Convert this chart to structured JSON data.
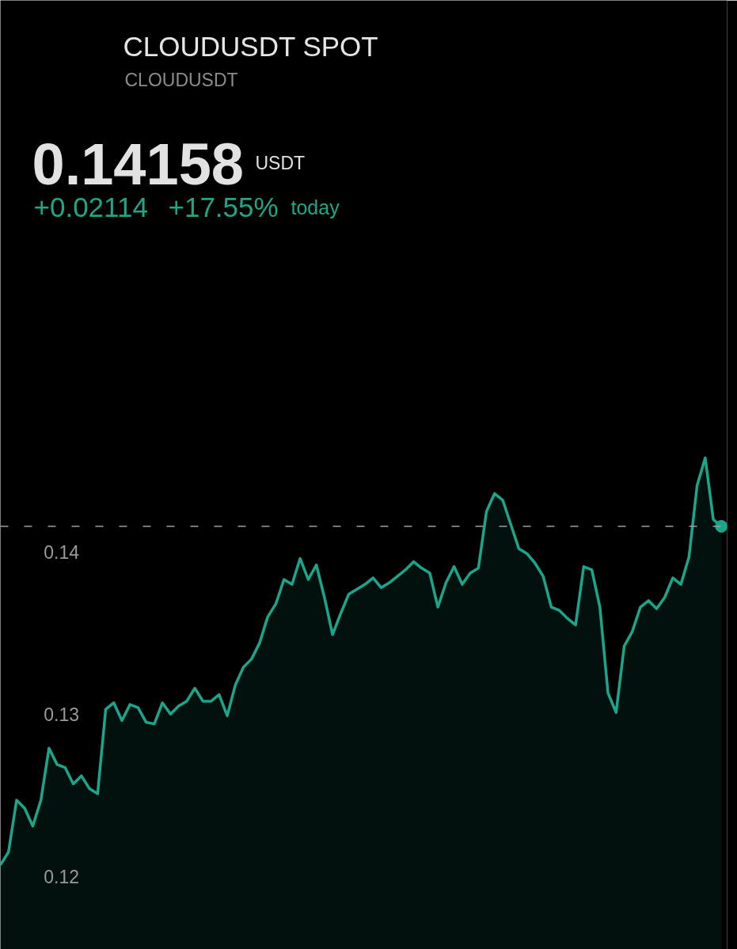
{
  "chart_data": {
    "type": "area",
    "title": "CLOUDUSDT SPOT",
    "subtitle": "CLOUDUSDT",
    "annotations": [
      "0.14158",
      "USDT",
      "+0.02114",
      "+17.55%",
      "today"
    ],
    "categories": [
      null,
      null,
      null,
      null,
      null,
      null,
      null,
      null,
      null,
      null,
      null,
      null,
      null,
      null,
      null,
      null,
      null,
      null,
      null,
      null,
      null,
      null,
      null,
      null,
      null,
      null,
      null,
      null,
      null,
      null,
      null,
      null,
      null,
      null,
      null,
      null,
      null,
      null,
      null,
      null,
      null,
      null,
      null,
      null,
      null,
      null,
      null,
      null,
      null,
      null,
      null,
      null,
      null,
      null,
      null,
      null,
      null,
      null,
      null,
      null,
      null,
      null,
      null,
      null,
      null,
      null,
      null,
      null,
      null,
      null,
      null,
      null,
      null,
      null,
      null,
      null,
      null,
      null,
      null,
      null,
      null,
      null,
      null,
      null,
      null,
      null,
      null,
      null,
      null,
      null
    ],
    "series": [
      {
        "color": "#1aa68a",
        "values": [
          0.1207,
          0.1215,
          0.1247,
          0.1242,
          0.1231,
          0.1247,
          0.1279,
          0.1269,
          0.1267,
          0.1257,
          0.1262,
          0.1254,
          0.1251,
          0.1303,
          0.1307,
          0.1296,
          0.1306,
          0.1304,
          0.1295,
          0.1294,
          0.1307,
          0.13,
          0.1305,
          0.1308,
          0.1316,
          0.1308,
          0.1308,
          0.1312,
          0.1299,
          0.1318,
          0.1329,
          0.1334,
          0.1344,
          0.136,
          0.1368,
          0.1383,
          0.138,
          0.1396,
          0.1383,
          0.1392,
          0.1372,
          0.1349,
          0.1362,
          0.1374,
          0.1377,
          0.138,
          0.1384,
          0.1378,
          0.1381,
          0.1385,
          0.1389,
          0.1394,
          0.139,
          0.1387,
          0.1366,
          0.1381,
          0.1391,
          0.138,
          0.1387,
          0.139,
          0.1425,
          0.1436,
          0.1432,
          0.1417,
          0.1402,
          0.1399,
          0.1393,
          0.1385,
          0.1366,
          0.1364,
          0.1359,
          0.1355,
          0.1391,
          0.1389,
          0.1366,
          0.1313,
          0.1301,
          0.1342,
          0.1351,
          0.1366,
          0.137,
          0.1365,
          0.1372,
          0.1384,
          0.138,
          0.1397,
          0.1441,
          0.1458,
          0.142,
          0.14158
        ]
      },
      {
        "type": "scatter",
        "color": "#1aa68a",
        "marker": "circle",
        "values": [
          null,
          null,
          null,
          null,
          null,
          null,
          null,
          null,
          null,
          null,
          null,
          null,
          null,
          null,
          null,
          null,
          null,
          null,
          null,
          null,
          null,
          null,
          null,
          null,
          null,
          null,
          null,
          null,
          null,
          null,
          null,
          null,
          null,
          null,
          null,
          null,
          null,
          null,
          null,
          null,
          null,
          null,
          null,
          null,
          null,
          null,
          null,
          null,
          null,
          null,
          null,
          null,
          null,
          null,
          null,
          null,
          null,
          null,
          null,
          null,
          null,
          null,
          null,
          null,
          null,
          null,
          null,
          null,
          null,
          null,
          null,
          null,
          null,
          null,
          null,
          null,
          null,
          null,
          null,
          null,
          null,
          null,
          null,
          null,
          null,
          null,
          null,
          null,
          null,
          0.14158
        ]
      }
    ],
    "ylim": [
      0.1155,
      0.174
    ],
    "yticks": [
      0.12,
      0.13,
      0.14
    ],
    "tick_labels": "y",
    "ref_lines": [
      {
        "axis": "y",
        "value": 0.14158,
        "color": "#9e9e9e",
        "line_style": "dashed"
      }
    ]
  }
}
